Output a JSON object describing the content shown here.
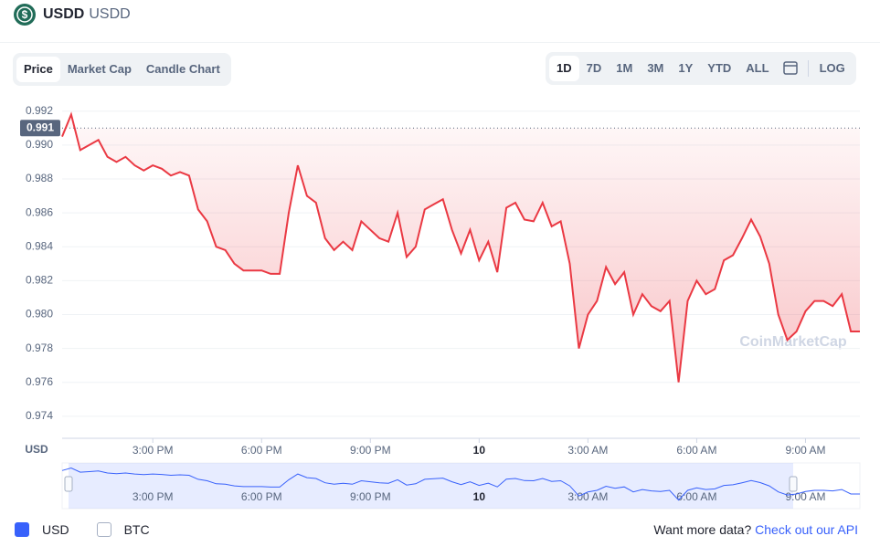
{
  "header": {
    "symbol": "USDD",
    "name": "USDD"
  },
  "tabs": [
    "Price",
    "Market Cap",
    "Candle Chart"
  ],
  "ranges": [
    "1D",
    "7D",
    "1M",
    "3M",
    "1Y",
    "YTD",
    "ALL"
  ],
  "log_label": "LOG",
  "chart_data": {
    "type": "line",
    "y_axis_label": "USD",
    "watermark": "CoinMarketCap",
    "color": "#ea3943",
    "reference": {
      "value": 0.991,
      "label": "0.991"
    },
    "xlim": [
      12.5,
      34.5
    ],
    "xticks": [
      {
        "value": 15,
        "label": "3:00 PM"
      },
      {
        "value": 18,
        "label": "6:00 PM"
      },
      {
        "value": 21,
        "label": "9:00 PM"
      },
      {
        "value": 24,
        "label": "10"
      },
      {
        "value": 27,
        "label": "3:00 AM"
      },
      {
        "value": 30,
        "label": "6:00 AM"
      },
      {
        "value": 33,
        "label": "9:00 AM"
      }
    ],
    "ylim": [
      0.9727,
      0.9929
    ],
    "yticks": [
      0.974,
      0.976,
      0.978,
      {
        "value": 0.98,
        "label": "0.980"
      },
      0.982,
      0.984,
      0.986,
      0.988,
      {
        "value": 0.99,
        "label": "0.990"
      },
      0.992
    ],
    "grid": true,
    "x": [
      12.5,
      12.75,
      13,
      13.25,
      13.5,
      13.75,
      14,
      14.25,
      14.5,
      14.75,
      15,
      15.25,
      15.5,
      15.75,
      16,
      16.25,
      16.5,
      16.75,
      17,
      17.25,
      17.5,
      17.75,
      18,
      18.25,
      18.5,
      18.75,
      19,
      19.25,
      19.5,
      19.75,
      20,
      20.25,
      20.5,
      20.75,
      21,
      21.25,
      21.5,
      21.75,
      22,
      22.25,
      22.5,
      22.75,
      23,
      23.25,
      23.5,
      23.75,
      24,
      24.25,
      24.5,
      24.75,
      25,
      25.25,
      25.5,
      25.75,
      26,
      26.25,
      26.5,
      26.75,
      27,
      27.25,
      27.5,
      27.75,
      28,
      28.25,
      28.5,
      28.75,
      29,
      29.25,
      29.5,
      29.75,
      30,
      30.25,
      30.5,
      30.75,
      31,
      31.25,
      31.5,
      31.75,
      32,
      32.25,
      32.5,
      32.75,
      33,
      33.25,
      33.5,
      33.75,
      34,
      34.25,
      34.5
    ],
    "values": [
      0.9905,
      0.9918,
      0.9897,
      0.99,
      0.9903,
      0.9893,
      0.989,
      0.9893,
      0.9888,
      0.9885,
      0.9888,
      0.9886,
      0.9882,
      0.9884,
      0.9882,
      0.9862,
      0.9855,
      0.984,
      0.9838,
      0.983,
      0.9826,
      0.9826,
      0.9826,
      0.9824,
      0.9824,
      0.986,
      0.9888,
      0.987,
      0.9866,
      0.9845,
      0.9838,
      0.9843,
      0.9838,
      0.9855,
      0.985,
      0.9845,
      0.9843,
      0.986,
      0.9834,
      0.984,
      0.9862,
      0.9865,
      0.9868,
      0.985,
      0.9836,
      0.985,
      0.9832,
      0.9843,
      0.9825,
      0.9863,
      0.9866,
      0.9856,
      0.9855,
      0.9866,
      0.9852,
      0.9855,
      0.983,
      0.978,
      0.98,
      0.9808,
      0.9828,
      0.9818,
      0.9825,
      0.98,
      0.9812,
      0.9805,
      0.9802,
      0.9808,
      0.976,
      0.9808,
      0.982,
      0.9812,
      0.9815,
      0.9832,
      0.9835,
      0.9845,
      0.9856,
      0.9846,
      0.983,
      0.98,
      0.9785,
      0.979,
      0.9802,
      0.9808,
      0.9808,
      0.9805,
      0.9812,
      0.979,
      0.979
    ]
  },
  "currencies": [
    "USD",
    "BTC"
  ],
  "footer": {
    "prompt": "Want more data?",
    "link": "Check out our API"
  }
}
